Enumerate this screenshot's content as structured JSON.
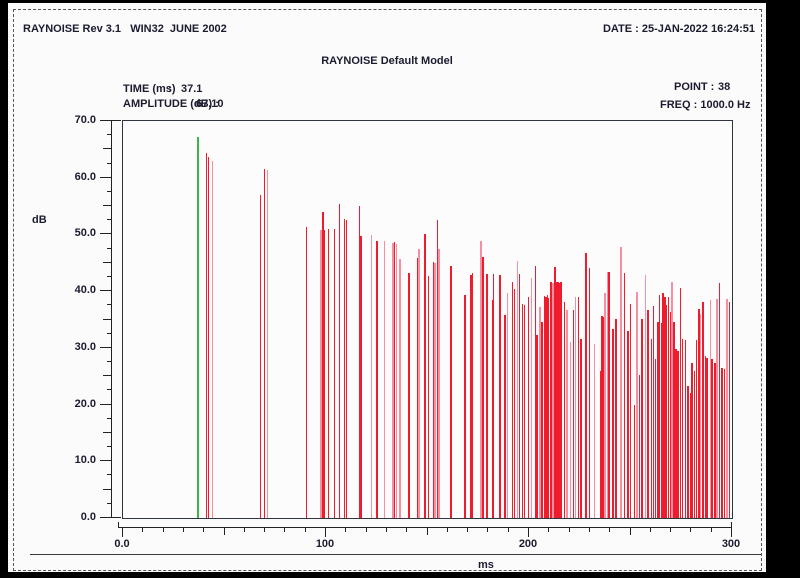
{
  "header": {
    "product": "RAYNOISE Rev 3.1   WIN32  JUNE 2002",
    "date": "DATE : 25-JAN-2022 16:24:51"
  },
  "title": "RAYNOISE Default Model",
  "info": {
    "time_label": "TIME (ms)",
    "time_colon": ":",
    "time_value": "37.1",
    "amplitude_label": "AMPLITUDE (dB) :",
    "amplitude_value": "67.10",
    "point_label": "POINT :",
    "point_value": "38",
    "freq_label": "FREQ : 1000.0 Hz"
  },
  "colors": {
    "spike_red": "#ee1c2c",
    "spike_pink": "#f68fa0",
    "cursor_green": "#3bb44a",
    "axis": "#222222",
    "text": "#1b1b2f",
    "page_bg": "#fbfbfb"
  },
  "chart_data": {
    "type": "bar",
    "subtype": "impulse-echogram",
    "title": "RAYNOISE Default Model",
    "xlabel": "ms",
    "ylabel": "dB",
    "x_range": [
      0,
      300
    ],
    "y_range": [
      0,
      70
    ],
    "grid": false,
    "legend": "none",
    "y_ticks": [
      {
        "label": "70.0",
        "value": 70
      },
      {
        "label": "60.0",
        "value": 60
      },
      {
        "label": "50.0",
        "value": 50
      },
      {
        "label": "40.0",
        "value": 40
      },
      {
        "label": "30.0",
        "value": 30
      },
      {
        "label": "20.0",
        "value": 20
      },
      {
        "label": "10.0",
        "value": 10
      },
      {
        "label": "0.0",
        "value": 0
      }
    ],
    "x_ticks": [
      {
        "label": "0.0",
        "value": 0
      },
      {
        "label": "100",
        "value": 100
      },
      {
        "label": "200",
        "value": 200
      },
      {
        "label": "300",
        "value": 300
      }
    ],
    "cursor": {
      "time_ms": 37.1,
      "amplitude_db": 67.1
    },
    "spikes": [
      [
        41,
        64.3,
        "r"
      ],
      [
        42,
        63.7,
        "r"
      ],
      [
        44,
        63.0,
        "p"
      ],
      [
        67.6,
        57.0,
        "r"
      ],
      [
        69.5,
        61.5,
        "r"
      ],
      [
        71,
        61.3,
        "p"
      ],
      [
        90.3,
        51.3,
        "r"
      ],
      [
        97.5,
        50.8,
        "p"
      ],
      [
        98.3,
        54.0,
        "r"
      ],
      [
        99,
        50.8,
        "r"
      ],
      [
        101,
        50.9,
        "r"
      ],
      [
        104,
        51.0,
        "r"
      ],
      [
        106.5,
        55.4,
        "r"
      ],
      [
        109,
        52.8,
        "r"
      ],
      [
        110,
        52.6,
        "r"
      ],
      [
        116.4,
        55.0,
        "r"
      ],
      [
        117.2,
        49.8,
        "r"
      ],
      [
        122.3,
        49.9,
        "p"
      ],
      [
        125,
        48.9,
        "r"
      ],
      [
        128.6,
        48.9,
        "p"
      ],
      [
        132.8,
        48.5,
        "p"
      ],
      [
        133.6,
        48.6,
        "r"
      ],
      [
        134.5,
        48.4,
        "p"
      ],
      [
        136.3,
        45.6,
        "p"
      ],
      [
        140.7,
        43.2,
        "r"
      ],
      [
        145,
        45.9,
        "r"
      ],
      [
        145.8,
        47.4,
        "p"
      ],
      [
        148.6,
        50.1,
        "r"
      ],
      [
        150.3,
        42.6,
        "r"
      ],
      [
        152.8,
        45.2,
        "r"
      ],
      [
        153.6,
        45.0,
        "p"
      ],
      [
        154.9,
        52.5,
        "r"
      ],
      [
        155.6,
        47.4,
        "p"
      ],
      [
        161.5,
        44.4,
        "r"
      ],
      [
        168.4,
        39.4,
        "r"
      ],
      [
        171.3,
        42.9,
        "r"
      ],
      [
        172,
        43.2,
        "r"
      ],
      [
        176.3,
        48.9,
        "p"
      ],
      [
        177.1,
        46.0,
        "r"
      ],
      [
        179.1,
        43.0,
        "r"
      ],
      [
        181.9,
        38.5,
        "r"
      ],
      [
        182.3,
        43.0,
        "r"
      ],
      [
        185.6,
        42.8,
        "r"
      ],
      [
        188.1,
        35.8,
        "r"
      ],
      [
        189.4,
        39.6,
        "p"
      ],
      [
        191.7,
        41.7,
        "r"
      ],
      [
        192.7,
        40.3,
        "r"
      ],
      [
        194.2,
        45.3,
        "p"
      ],
      [
        195.2,
        43.0,
        "r"
      ],
      [
        196.6,
        37.8,
        "r"
      ],
      [
        197.6,
        37.6,
        "r"
      ],
      [
        199.6,
        39.0,
        "r"
      ],
      [
        201.2,
        42.3,
        "p"
      ],
      [
        203.2,
        44.4,
        "r"
      ],
      [
        203.9,
        32.2,
        "r"
      ],
      [
        205.4,
        37.2,
        "p"
      ],
      [
        206.2,
        34.6,
        "r"
      ],
      [
        207.5,
        39.2,
        "r"
      ],
      [
        208.2,
        39.0,
        "r"
      ],
      [
        208.9,
        39.3,
        "r"
      ],
      [
        209.6,
        38.8,
        "r"
      ],
      [
        210.6,
        41.7,
        "r"
      ],
      [
        211.6,
        41.4,
        "p"
      ],
      [
        212.8,
        44.3,
        "r"
      ],
      [
        213.6,
        41.7,
        "r"
      ],
      [
        214.4,
        41.7,
        "r"
      ],
      [
        215.0,
        41.5,
        "r"
      ],
      [
        215.7,
        41.6,
        "r"
      ],
      [
        217.4,
        38.1,
        "r"
      ],
      [
        218.6,
        36.7,
        "p"
      ],
      [
        220.2,
        31.0,
        "p"
      ],
      [
        221.9,
        36.7,
        "r"
      ],
      [
        222.7,
        39.0,
        "p"
      ],
      [
        224.3,
        39.0,
        "r"
      ],
      [
        225.6,
        31.6,
        "r"
      ],
      [
        227.9,
        46.8,
        "r"
      ],
      [
        229.6,
        44.1,
        "r"
      ],
      [
        232.2,
        30.7,
        "p"
      ],
      [
        235.0,
        26.0,
        "r"
      ],
      [
        235.8,
        35.7,
        "r"
      ],
      [
        236.5,
        35.5,
        "r"
      ],
      [
        237.4,
        39.6,
        "p"
      ],
      [
        238.8,
        43.3,
        "p"
      ],
      [
        239.4,
        43.3,
        "r"
      ],
      [
        241.2,
        33.4,
        "r"
      ],
      [
        242.7,
        35.1,
        "r"
      ],
      [
        245.3,
        47.7,
        "p"
      ],
      [
        246.8,
        43.2,
        "r"
      ],
      [
        248.6,
        33.0,
        "r"
      ],
      [
        249.8,
        37.8,
        "r"
      ],
      [
        251.9,
        20.0,
        "r"
      ],
      [
        253.1,
        39.9,
        "p"
      ],
      [
        254.2,
        25.3,
        "r"
      ],
      [
        255.5,
        35.1,
        "r"
      ],
      [
        257.2,
        42.9,
        "p"
      ],
      [
        258.5,
        36.6,
        "r"
      ],
      [
        260.1,
        31.6,
        "r"
      ],
      [
        261.3,
        37.4,
        "r"
      ],
      [
        262.1,
        28.0,
        "r"
      ],
      [
        263.4,
        34.5,
        "r"
      ],
      [
        264.2,
        39.3,
        "r"
      ],
      [
        265.1,
        34.3,
        "r"
      ],
      [
        265.8,
        39.6,
        "r"
      ],
      [
        266.8,
        39.0,
        "r"
      ],
      [
        267.4,
        37.5,
        "r"
      ],
      [
        268.7,
        39.0,
        "r"
      ],
      [
        269.5,
        36.3,
        "r"
      ],
      [
        270.3,
        41.7,
        "p"
      ],
      [
        271.2,
        34.6,
        "r"
      ],
      [
        272.3,
        29.8,
        "r"
      ],
      [
        273.3,
        29.5,
        "r"
      ],
      [
        274.4,
        40.5,
        "r"
      ],
      [
        275.6,
        31.6,
        "r"
      ],
      [
        276.9,
        31.3,
        "r"
      ],
      [
        278.2,
        23.2,
        "r"
      ],
      [
        279.4,
        22.0,
        "r"
      ],
      [
        280.2,
        27.4,
        "r"
      ],
      [
        281.5,
        25.9,
        "r"
      ],
      [
        282.3,
        31.3,
        "r"
      ],
      [
        283.5,
        36.9,
        "r"
      ],
      [
        284.3,
        36.0,
        "p"
      ],
      [
        285.5,
        38.1,
        "r"
      ],
      [
        286.7,
        28.6,
        "r"
      ],
      [
        287.6,
        28.3,
        "r"
      ],
      [
        289.2,
        38.4,
        "p"
      ],
      [
        290.0,
        28.0,
        "r"
      ],
      [
        291.4,
        27.4,
        "r"
      ],
      [
        292.5,
        38.7,
        "p"
      ],
      [
        293.6,
        41.4,
        "r"
      ],
      [
        295.0,
        26.5,
        "r"
      ],
      [
        296.3,
        26.2,
        "r"
      ],
      [
        297.5,
        38.7,
        "p"
      ],
      [
        298.6,
        38.1,
        "r"
      ]
    ]
  }
}
